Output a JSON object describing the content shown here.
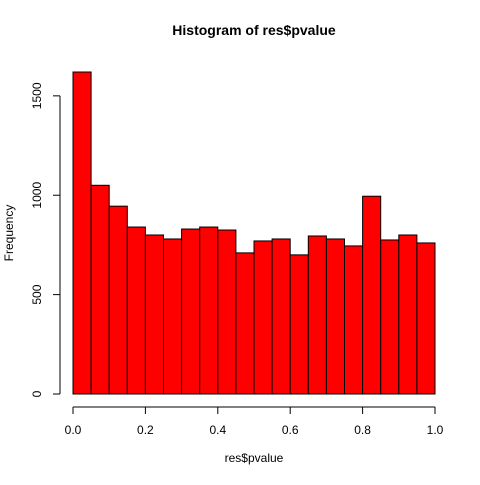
{
  "chart_data": {
    "type": "bar",
    "title": "Histogram of res$pvalue",
    "xlabel": "res$pvalue",
    "ylabel": "Frequency",
    "bin_edges": [
      0.0,
      0.05,
      0.1,
      0.15,
      0.2,
      0.25,
      0.3,
      0.35,
      0.4,
      0.45,
      0.5,
      0.55,
      0.6,
      0.65,
      0.7,
      0.75,
      0.8,
      0.85,
      0.9,
      0.95,
      1.0
    ],
    "values": [
      1620,
      1050,
      945,
      840,
      800,
      780,
      830,
      840,
      825,
      710,
      770,
      780,
      700,
      795,
      780,
      745,
      995,
      775,
      800,
      760
    ],
    "xlim": [
      0,
      1
    ],
    "ylim": [
      0,
      1620
    ],
    "x_ticks": [
      "0.0",
      "0.2",
      "0.4",
      "0.6",
      "0.8",
      "1.0"
    ],
    "x_tick_values": [
      0,
      0.2,
      0.4,
      0.6,
      0.8,
      1.0
    ],
    "y_ticks": [
      "0",
      "500",
      "1000",
      "1500"
    ],
    "y_tick_values": [
      0,
      500,
      1000,
      1500
    ],
    "bar_color": "#ff0000",
    "edge_color": "#000000",
    "grid": false
  }
}
